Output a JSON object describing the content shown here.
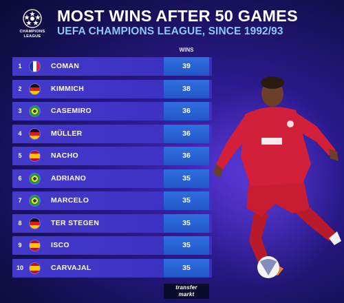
{
  "logo": {
    "text_line1": "CHAMPIONS",
    "text_line2": "LEAGUE",
    "icon": "star-ball-icon"
  },
  "header": {
    "title": "MOST WINS AFTER 50 GAMES",
    "subtitle": "UEFA CHAMPIONS LEAGUE, SINCE 1992/93"
  },
  "table": {
    "column_header": "WINS",
    "rows": [
      {
        "rank": "1",
        "flag": "France",
        "name": "COMAN",
        "wins": "39"
      },
      {
        "rank": "2",
        "flag": "Germany",
        "name": "KIMMICH",
        "wins": "38"
      },
      {
        "rank": "3",
        "flag": "Brazil",
        "name": "CASEMIRO",
        "wins": "36"
      },
      {
        "rank": "4",
        "flag": "Germany",
        "name": "MÜLLER",
        "wins": "36"
      },
      {
        "rank": "5",
        "flag": "Spain",
        "name": "NACHO",
        "wins": "36"
      },
      {
        "rank": "6",
        "flag": "Brazil",
        "name": "ADRIANO",
        "wins": "35"
      },
      {
        "rank": "7",
        "flag": "Brazil",
        "name": "MARCELO",
        "wins": "35"
      },
      {
        "rank": "8",
        "flag": "Germany",
        "name": "TER STEGEN",
        "wins": "35"
      },
      {
        "rank": "9",
        "flag": "Spain",
        "name": "ISCO",
        "wins": "35"
      },
      {
        "rank": "10",
        "flag": "Spain",
        "name": "CARVAJAL",
        "wins": "35"
      }
    ]
  },
  "brand": {
    "line1": "transfer",
    "line2": "markt"
  },
  "colors": {
    "background": "#1a1460",
    "row": "#463cd2",
    "wins_cell": "#2f6fe0",
    "subtitle": "#8fc6f5"
  }
}
